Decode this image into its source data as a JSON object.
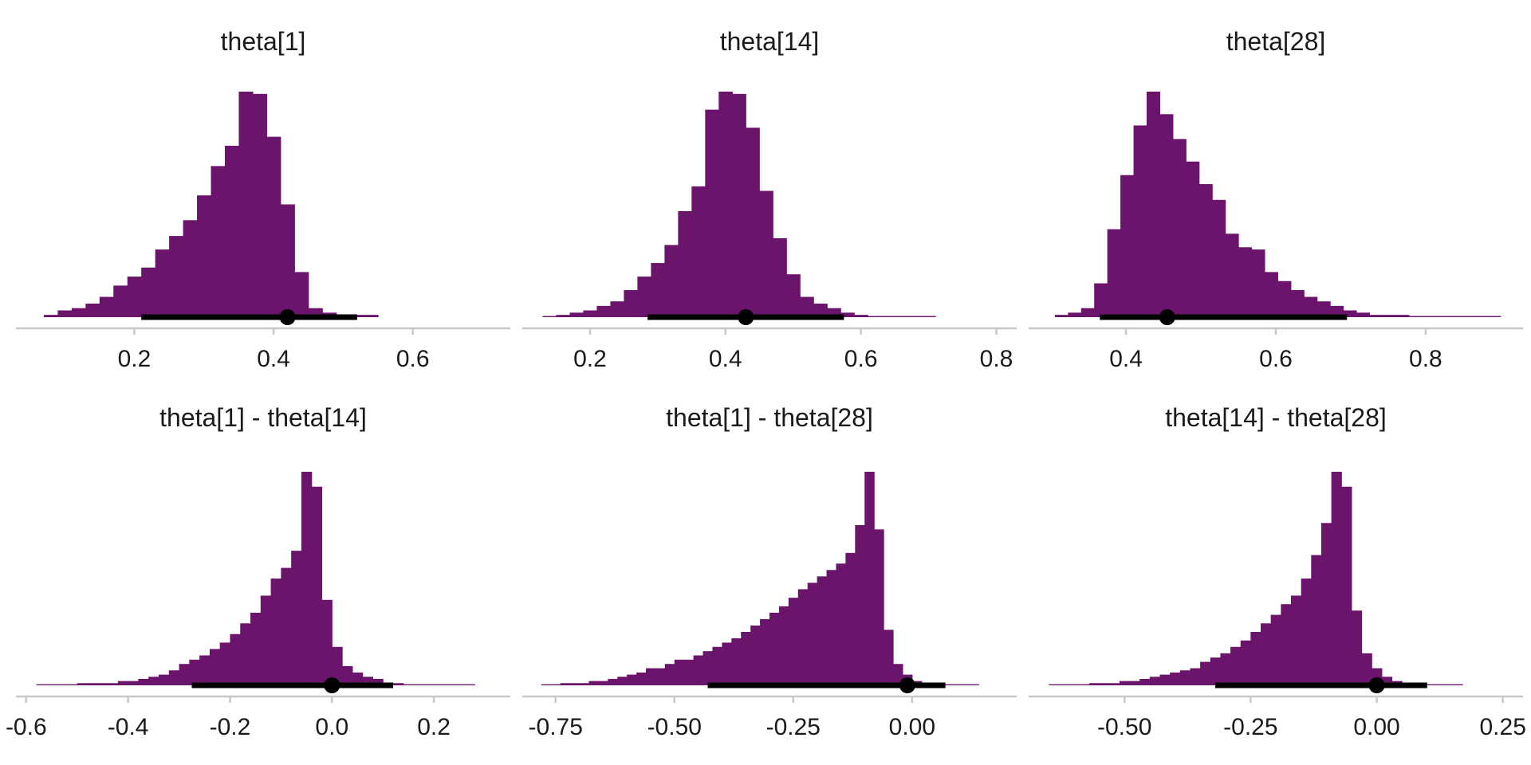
{
  "chart_data": [
    {
      "type": "histogram",
      "title": "theta[1]",
      "xlim": [
        0.03,
        0.74
      ],
      "xticks": [
        0.2,
        0.4,
        0.6
      ],
      "xtick_labels": [
        "0.2",
        "0.4",
        "0.6"
      ],
      "bin_start": 0.07,
      "bin_width": 0.02,
      "counts": [
        1,
        3,
        4,
        6,
        9,
        14,
        18,
        22,
        30,
        36,
        43,
        54,
        67,
        76,
        100,
        99,
        80,
        50,
        20,
        4,
        2,
        1,
        1,
        1
      ],
      "point_estimate": 0.42,
      "interval": [
        0.21,
        0.52
      ],
      "fill_color": "#6b146b"
    },
    {
      "type": "histogram",
      "title": "theta[14]",
      "xlim": [
        0.1,
        0.83
      ],
      "xticks": [
        0.2,
        0.4,
        0.6,
        0.8
      ],
      "xtick_labels": [
        "0.2",
        "0.4",
        "0.6",
        "0.8"
      ],
      "bin_start": 0.13,
      "bin_width": 0.02,
      "counts": [
        0.5,
        1,
        2,
        3,
        5,
        7,
        12,
        18,
        24,
        32,
        47,
        58,
        92,
        100,
        99,
        84,
        56,
        35,
        19,
        9,
        6,
        4,
        2,
        1,
        0.5,
        0.5,
        0.5,
        0.5,
        0.5
      ],
      "point_estimate": 0.43,
      "interval": [
        0.285,
        0.575
      ],
      "fill_color": "#6b146b"
    },
    {
      "type": "histogram",
      "title": "theta[28]",
      "xlim": [
        0.27,
        0.93
      ],
      "xticks": [
        0.4,
        0.6,
        0.8
      ],
      "xtick_labels": [
        "0.4",
        "0.6",
        "0.8"
      ],
      "bin_start": 0.305,
      "bin_width": 0.0175,
      "counts": [
        1,
        2,
        4,
        15,
        39,
        63,
        85,
        100,
        90,
        79,
        69,
        59,
        52,
        37,
        31,
        30,
        20,
        16,
        12,
        9,
        7,
        5,
        3,
        2,
        1,
        1,
        1,
        0.5,
        0.5,
        0.5,
        0.5,
        0.5,
        0.5,
        0.5
      ],
      "point_estimate": 0.455,
      "interval": [
        0.365,
        0.695
      ],
      "fill_color": "#6b146b"
    },
    {
      "type": "histogram",
      "title": "theta[1] - theta[14]",
      "xlim": [
        -0.62,
        0.35
      ],
      "xticks": [
        -0.6,
        -0.4,
        -0.2,
        0.0,
        0.2
      ],
      "xtick_labels": [
        "-0.6",
        "-0.4",
        "-0.2",
        "0.0",
        "0.2"
      ],
      "bin_start": -0.58,
      "bin_width": 0.02,
      "counts": [
        0.5,
        0.5,
        0.5,
        0.5,
        1,
        1,
        1,
        1,
        2,
        2,
        3,
        4,
        5,
        7,
        10,
        12,
        14,
        17,
        20,
        24,
        29,
        34,
        42,
        50,
        55,
        63,
        100,
        93,
        40,
        18,
        9,
        6,
        4,
        3,
        1,
        1,
        0.5,
        0.5,
        0.5,
        0.5,
        0.5,
        0.5,
        0.5
      ],
      "point_estimate": 0.0,
      "interval": [
        -0.275,
        0.12
      ],
      "fill_color": "#6b146b"
    },
    {
      "type": "histogram",
      "title": "theta[1] - theta[28]",
      "xlim": [
        -0.82,
        0.22
      ],
      "xticks": [
        -0.75,
        -0.5,
        -0.25,
        0.0
      ],
      "xtick_labels": [
        "-0.75",
        "-0.50",
        "-0.25",
        "0.00"
      ],
      "bin_start": -0.78,
      "bin_width": 0.02,
      "counts": [
        0.5,
        0.5,
        1,
        1,
        1,
        2,
        2,
        3,
        4,
        5,
        6,
        8,
        8,
        10,
        12,
        12,
        14,
        16,
        18,
        20,
        22,
        25,
        28,
        31,
        34,
        37,
        41,
        45,
        48,
        51,
        54,
        57,
        62,
        75,
        100,
        73,
        26,
        10,
        5,
        2,
        1,
        0.5,
        0.5,
        0.5,
        0.5,
        0.5
      ],
      "point_estimate": -0.01,
      "interval": [
        -0.43,
        0.07
      ],
      "fill_color": "#6b146b"
    },
    {
      "type": "histogram",
      "title": "theta[14] - theta[28]",
      "xlim": [
        -0.69,
        0.29
      ],
      "xticks": [
        -0.5,
        -0.25,
        0.0,
        0.25
      ],
      "xtick_labels": [
        "-0.50",
        "-0.25",
        "0.00",
        "0.25"
      ],
      "bin_start": -0.65,
      "bin_width": 0.02,
      "counts": [
        0.5,
        0.5,
        0.5,
        0.5,
        1,
        1,
        1,
        2,
        2,
        3,
        4,
        5,
        6,
        7,
        8,
        11,
        13,
        15,
        18,
        21,
        25,
        29,
        33,
        38,
        42,
        50,
        61,
        76,
        100,
        93,
        35,
        15,
        8,
        4,
        2,
        1,
        0.5,
        0.5,
        0.5,
        0.5,
        0.5
      ],
      "point_estimate": 0.0,
      "interval": [
        -0.32,
        0.1
      ],
      "fill_color": "#6b146b"
    }
  ]
}
